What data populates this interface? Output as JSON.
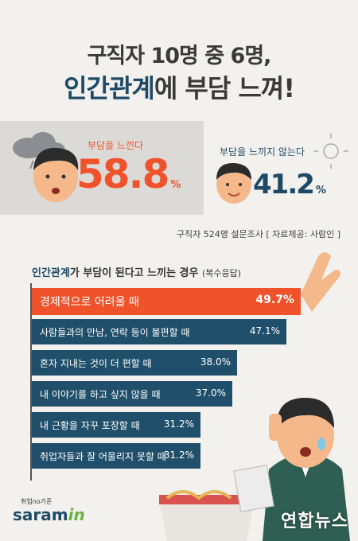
{
  "header": {
    "line1": "구직자 10명 중 6명,",
    "line2_highlight": "인간관계",
    "line2_rest": "에 부담 느껴!"
  },
  "stats": {
    "yes_label": "부담을 느낀다",
    "yes_value": "58.8",
    "yes_unit": "%",
    "no_label": "부담을 느끼지 않는다",
    "no_value": "41.2",
    "no_unit": "%"
  },
  "source": "구직자 524명 설문조사  [ 자료제공: 사람인 ]",
  "chart_heading": {
    "highlight": "인간관계",
    "rest": "가 부담이 된다고 느끼는 경우",
    "note": "(복수응답)"
  },
  "logo": {
    "small": "취업no기준",
    "main": "saram",
    "accent": "in"
  },
  "watermark": "연합뉴스",
  "colors": {
    "highlight_bar": "#f0532b",
    "bar": "#1f4f6a",
    "accent_text": "#f0532b",
    "dark_text": "#1e4a66"
  },
  "chart_data": {
    "type": "bar",
    "orientation": "horizontal",
    "categories": [
      "경제적으로 어려울 때",
      "사람들과의 만남, 연락 등이 불편할 때",
      "혼자 지내는 것이 더 편할 때",
      "내 이야기를 하고 싶지 않을 때",
      "내 근황을 자꾸 포장할 때",
      "취업자들과 잘 어울리지 못할 때"
    ],
    "values": [
      49.7,
      47.1,
      38.0,
      37.0,
      31.2,
      31.2
    ],
    "value_labels": [
      "49.7%",
      "47.1%",
      "38.0%",
      "37.0%",
      "31.2%",
      "31.2%"
    ],
    "highlight_index": 0,
    "title": "",
    "xlabel": "",
    "ylabel": ""
  }
}
